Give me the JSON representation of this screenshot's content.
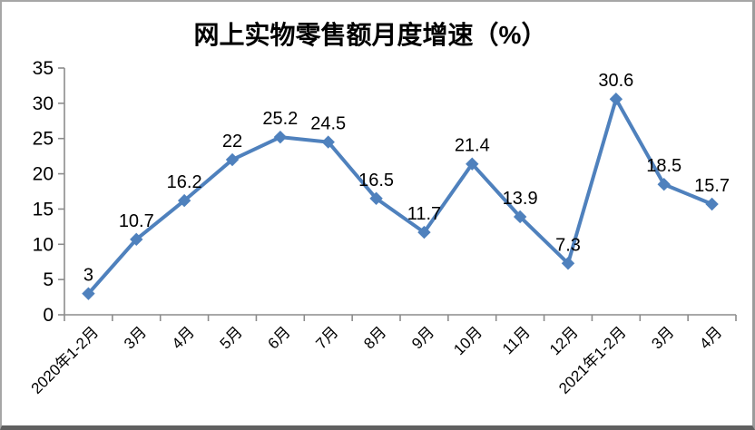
{
  "chart_data": {
    "type": "line",
    "title": "网上实物零售额月度增速（%）",
    "categories": [
      "2020年1-2月",
      "3月",
      "4月",
      "5月",
      "6月",
      "7月",
      "8月",
      "9月",
      "10月",
      "11月",
      "12月",
      "2021年1-2月",
      "3月",
      "4月"
    ],
    "values": [
      3,
      10.7,
      16.2,
      22,
      25.2,
      24.5,
      16.5,
      11.7,
      21.4,
      13.9,
      7.3,
      30.6,
      18.5,
      15.7
    ],
    "data_labels": [
      "3",
      "10.7",
      "16.2",
      "22",
      "25.2",
      "24.5",
      "16.5",
      "11.7",
      "21.4",
      "13.9",
      "7.3",
      "30.6",
      "18.5",
      "15.7"
    ],
    "xlabel": "",
    "ylabel": "",
    "ylim": [
      0,
      35
    ],
    "yticks": [
      0,
      5,
      10,
      15,
      20,
      25,
      30,
      35
    ],
    "grid": false,
    "legend_position": "none",
    "line_color": "#4F81BD",
    "marker_shape": "diamond",
    "axis_color": "#8c8c8c",
    "text_color": "#000000",
    "background_color": "#ffffff",
    "frame_border_color": "#a6a6a6"
  }
}
